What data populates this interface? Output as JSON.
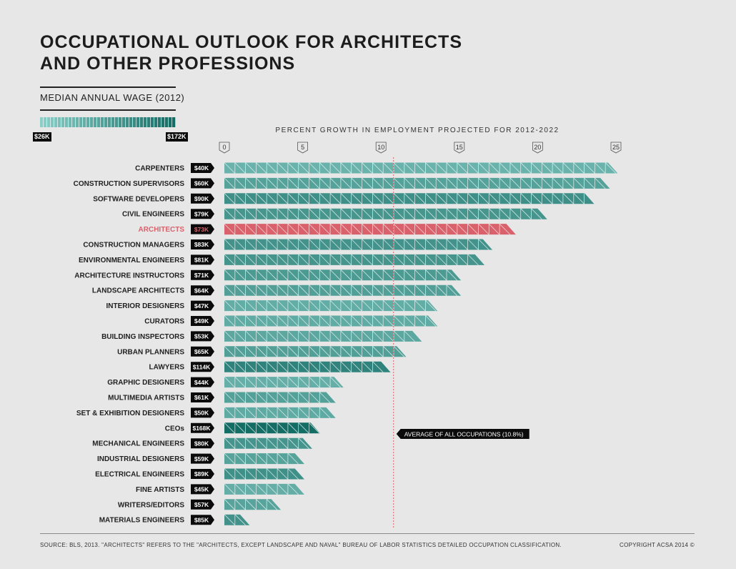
{
  "title_lines": [
    "OCCUPATIONAL OUTLOOK FOR ARCHITECTS",
    "AND OTHER PROFESSIONS"
  ],
  "wage_legend": {
    "title": "MEDIAN ANNUAL WAGE (2012)",
    "min_label": "$26K",
    "max_label": "$172K",
    "min_value": 26,
    "max_value": 172,
    "color_low": "#8ccfc8",
    "color_high": "#126b63"
  },
  "highlight_color": "#d9616b",
  "chart_data": {
    "type": "bar",
    "orientation": "horizontal",
    "title": "PERCENT GROWTH IN EMPLOYMENT PROJECTED FOR 2012-2022",
    "xlim": [
      0,
      25
    ],
    "xticks": [
      "0",
      "5",
      "10",
      "15",
      "20",
      "25"
    ],
    "categories": [
      "CARPENTERS",
      "CONSTRUCTION SUPERVISORS",
      "SOFTWARE DEVELOPERS",
      "CIVIL ENGINEERS",
      "ARCHITECTS",
      "CONSTRUCTION MANAGERS",
      "ENVIRONMENTAL ENGINEERS",
      "ARCHITECTURE INSTRUCTORS",
      "LANDSCAPE ARCHITECTS",
      "INTERIOR DESIGNERS",
      "CURATORS",
      "BUILDING INSPECTORS",
      "URBAN PLANNERS",
      "LAWYERS",
      "GRAPHIC DESIGNERS",
      "MULTIMEDIA ARTISTS",
      "SET & EXHIBITION DESIGNERS",
      "CEOs",
      "MECHANICAL ENGINEERS",
      "INDUSTRIAL DESIGNERS",
      "ELECTRICAL ENGINEERS",
      "FINE ARTISTS",
      "WRITERS/EDITORS",
      "MATERIALS ENGINEERS"
    ],
    "values": [
      24.5,
      24,
      23,
      20,
      18,
      16.5,
      16,
      14.5,
      14.5,
      13,
      13,
      12,
      11,
      10,
      7,
      6.5,
      6.5,
      5.5,
      5,
      4.5,
      4.5,
      4.5,
      3,
      1
    ],
    "wage_labels": [
      "$40K",
      "$60K",
      "$90K",
      "$79K",
      "$73K",
      "$83K",
      "$81K",
      "$71K",
      "$64K",
      "$47K",
      "$49K",
      "$53K",
      "$65K",
      "$114K",
      "$44K",
      "$61K",
      "$50K",
      "$168K",
      "$80K",
      "$59K",
      "$89K",
      "$45K",
      "$57K",
      "$85K"
    ],
    "wages": [
      40,
      60,
      90,
      79,
      73,
      83,
      81,
      71,
      64,
      47,
      49,
      53,
      65,
      114,
      44,
      61,
      50,
      168,
      80,
      59,
      89,
      45,
      57,
      85
    ],
    "highlight": "ARCHITECTS",
    "average": {
      "value": 10.8,
      "label": "AVERAGE OF ALL OCCUPATIONS  (10.8%)"
    }
  },
  "footer": {
    "source": "SOURCE:  BLS, 2013. \"ARCHITECTS\" REFERS TO THE \"ARCHITECTS, EXCEPT LANDSCAPE AND NAVAL\" BUREAU OF LABOR STATISTICS DETAILED OCCUPATION CLASSIFICATION.",
    "copyright": "COPYRIGHT ACSA 2014 ©"
  }
}
